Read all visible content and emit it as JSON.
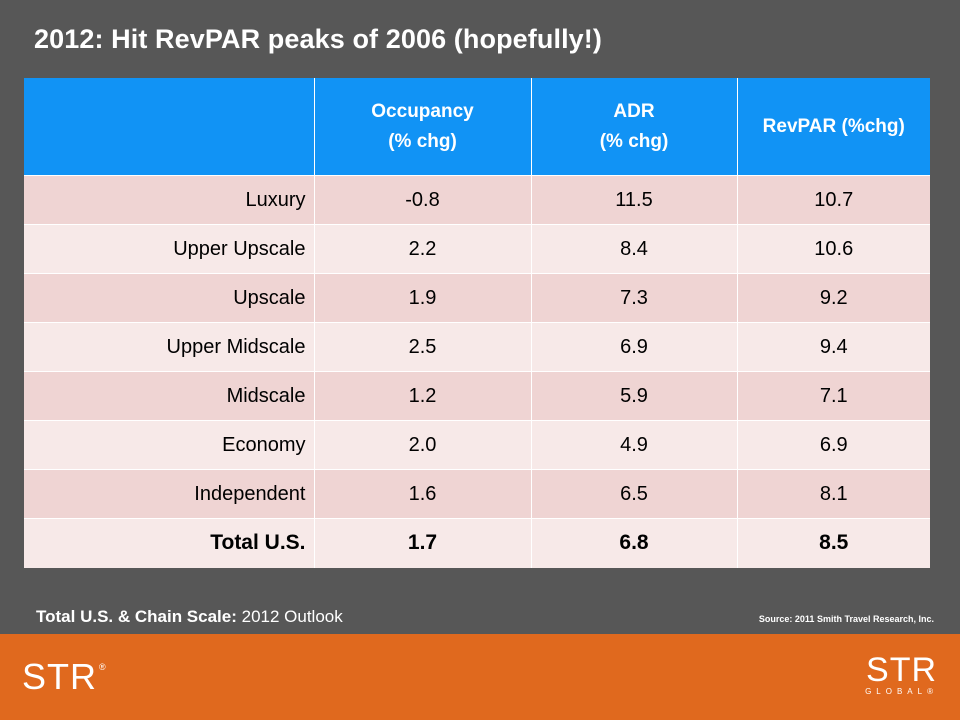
{
  "title": "2012: Hit RevPAR peaks of 2006 (hopefully!)",
  "table": {
    "headers": [
      "",
      "Occupancy\n(% chg)",
      "ADR\n(% chg)",
      "RevPAR (%chg)"
    ],
    "header_lines": [
      [],
      [
        "Occupancy",
        "(% chg)"
      ],
      [
        "ADR",
        "(% chg)"
      ],
      [
        "RevPAR (%chg)"
      ]
    ],
    "rows": [
      {
        "label": "Luxury",
        "occupancy": "-0.8",
        "adr": "11.5",
        "revpar": "10.7"
      },
      {
        "label": "Upper Upscale",
        "occupancy": "2.2",
        "adr": "8.4",
        "revpar": "10.6"
      },
      {
        "label": "Upscale",
        "occupancy": "1.9",
        "adr": "7.3",
        "revpar": "9.2"
      },
      {
        "label": "Upper Midscale",
        "occupancy": "2.5",
        "adr": "6.9",
        "revpar": "9.4"
      },
      {
        "label": "Midscale",
        "occupancy": "1.2",
        "adr": "5.9",
        "revpar": "7.1"
      },
      {
        "label": "Economy",
        "occupancy": "2.0",
        "adr": "4.9",
        "revpar": "6.9"
      },
      {
        "label": "Independent",
        "occupancy": "1.6",
        "adr": "6.5",
        "revpar": "8.1"
      },
      {
        "label": "Total U.S.",
        "occupancy": "1.7",
        "adr": "6.8",
        "revpar": "8.5"
      }
    ]
  },
  "caption": {
    "bold": "Total U.S. & Chain Scale:",
    "text": " 2012 Outlook"
  },
  "source": "Source: 2011 Smith Travel Research, Inc.",
  "footer": {
    "logo_left": "STR",
    "logo_left_mark": "®",
    "logo_right_top": "STR",
    "logo_right_bottom": "GLOBAL",
    "logo_right_mark": "®"
  },
  "colors": {
    "background": "#575757",
    "header": "#1193f5",
    "row_odd": "#efd4d3",
    "row_even": "#f7e9e8",
    "footer": "#e0691e"
  }
}
